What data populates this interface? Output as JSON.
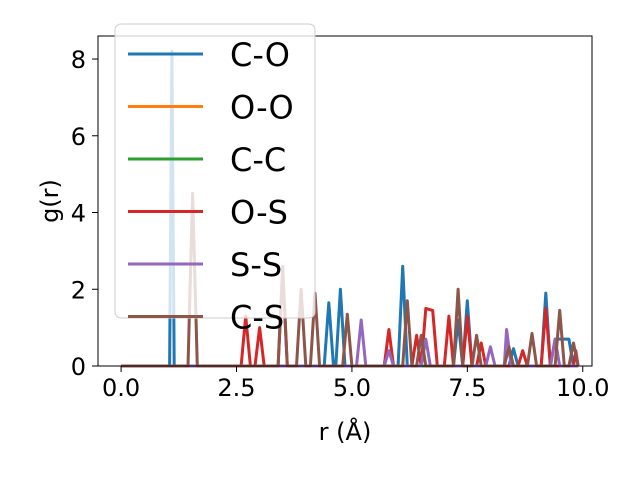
{
  "chart_data": {
    "type": "line",
    "xlabel": "r (Å)",
    "ylabel": "g(r)",
    "xlim": [
      -0.5,
      10.2
    ],
    "ylim": [
      0,
      8.6
    ],
    "xticks": [
      "0.0",
      "2.5",
      "5.0",
      "7.5",
      "10.0"
    ],
    "xtick_values": [
      0,
      2.5,
      5,
      7.5,
      10
    ],
    "yticks": [
      "0",
      "2",
      "4",
      "6",
      "8"
    ],
    "ytick_values": [
      0,
      2,
      4,
      6,
      8
    ],
    "grid": false,
    "legend_position": "upper-left",
    "series": [
      {
        "name": "C-O",
        "color": "#1f77b4",
        "points": [
          [
            0,
            0
          ],
          [
            1.05,
            0
          ],
          [
            1.1,
            8.2
          ],
          [
            1.15,
            0
          ],
          [
            4.4,
            0
          ],
          [
            4.5,
            1.65
          ],
          [
            4.6,
            0
          ],
          [
            4.65,
            0
          ],
          [
            4.75,
            2.0
          ],
          [
            4.85,
            0
          ],
          [
            6.0,
            0
          ],
          [
            6.1,
            2.6
          ],
          [
            6.2,
            0
          ],
          [
            7.2,
            0
          ],
          [
            7.3,
            1.2
          ],
          [
            7.4,
            0
          ],
          [
            7.5,
            1.7
          ],
          [
            7.6,
            0
          ],
          [
            8.4,
            0
          ],
          [
            8.5,
            0.45
          ],
          [
            8.6,
            0
          ],
          [
            9.1,
            0
          ],
          [
            9.2,
            1.9
          ],
          [
            9.3,
            0
          ],
          [
            9.4,
            0.7
          ],
          [
            9.7,
            0.7
          ],
          [
            9.8,
            0
          ],
          [
            9.9,
            0
          ]
        ]
      },
      {
        "name": "O-O",
        "color": "#ff7f0e",
        "points": [
          [
            0,
            0
          ],
          [
            9.9,
            0
          ]
        ]
      },
      {
        "name": "C-C",
        "color": "#2ca02c",
        "points": [
          [
            0,
            0
          ],
          [
            9.9,
            0
          ]
        ]
      },
      {
        "name": "O-S",
        "color": "#d62728",
        "points": [
          [
            0,
            0
          ],
          [
            2.6,
            0
          ],
          [
            2.7,
            1.3
          ],
          [
            2.8,
            0
          ],
          [
            2.9,
            0
          ],
          [
            3.0,
            1.0
          ],
          [
            3.1,
            0
          ],
          [
            3.4,
            0
          ],
          [
            3.5,
            2.5
          ],
          [
            3.6,
            0
          ],
          [
            5.7,
            0
          ],
          [
            5.8,
            0.95
          ],
          [
            5.9,
            0
          ],
          [
            6.3,
            0
          ],
          [
            6.4,
            0.8
          ],
          [
            6.5,
            0
          ],
          [
            6.6,
            1.5
          ],
          [
            6.75,
            1.45
          ],
          [
            6.85,
            0
          ],
          [
            7.0,
            0
          ],
          [
            7.1,
            1.3
          ],
          [
            7.2,
            0
          ],
          [
            7.4,
            0
          ],
          [
            7.5,
            1.3
          ],
          [
            7.6,
            0
          ],
          [
            7.7,
            0
          ],
          [
            7.8,
            0.6
          ],
          [
            7.9,
            0
          ],
          [
            8.6,
            0
          ],
          [
            8.7,
            0.4
          ],
          [
            8.8,
            0
          ],
          [
            9.1,
            0
          ],
          [
            9.2,
            1.5
          ],
          [
            9.3,
            0
          ],
          [
            9.8,
            0
          ],
          [
            9.85,
            0.4
          ],
          [
            9.9,
            0
          ]
        ]
      },
      {
        "name": "S-S",
        "color": "#9467bd",
        "points": [
          [
            0,
            0
          ],
          [
            5.1,
            0
          ],
          [
            5.2,
            1.2
          ],
          [
            5.3,
            0
          ],
          [
            5.7,
            0
          ],
          [
            5.8,
            0.4
          ],
          [
            5.9,
            0
          ],
          [
            6.5,
            0
          ],
          [
            6.6,
            0.7
          ],
          [
            6.7,
            0
          ],
          [
            7.9,
            0
          ],
          [
            8.0,
            0.5
          ],
          [
            8.1,
            0
          ],
          [
            8.3,
            0
          ],
          [
            8.35,
            0.95
          ],
          [
            8.45,
            0
          ],
          [
            9.3,
            0
          ],
          [
            9.4,
            0.7
          ],
          [
            9.5,
            0
          ],
          [
            9.9,
            0
          ]
        ]
      },
      {
        "name": "C-S",
        "color": "#8c564b",
        "points": [
          [
            0,
            0
          ],
          [
            1.45,
            0
          ],
          [
            1.55,
            4.5
          ],
          [
            1.65,
            0
          ],
          [
            3.4,
            0
          ],
          [
            3.5,
            2.6
          ],
          [
            3.6,
            0
          ],
          [
            3.8,
            0
          ],
          [
            3.9,
            2.0
          ],
          [
            4.0,
            0
          ],
          [
            4.1,
            0
          ],
          [
            4.2,
            1.9
          ],
          [
            4.3,
            0
          ],
          [
            4.8,
            0
          ],
          [
            4.9,
            1.35
          ],
          [
            5.0,
            0
          ],
          [
            6.1,
            0
          ],
          [
            6.2,
            1.7
          ],
          [
            6.3,
            0
          ],
          [
            6.4,
            0
          ],
          [
            6.5,
            0.8
          ],
          [
            6.6,
            0
          ],
          [
            7.2,
            0
          ],
          [
            7.3,
            2.0
          ],
          [
            7.4,
            0
          ],
          [
            7.6,
            0
          ],
          [
            7.7,
            0.8
          ],
          [
            7.8,
            0
          ],
          [
            8.3,
            0
          ],
          [
            8.4,
            0.5
          ],
          [
            8.5,
            0
          ],
          [
            8.8,
            0
          ],
          [
            8.9,
            0.85
          ],
          [
            9.0,
            0
          ],
          [
            9.4,
            0
          ],
          [
            9.5,
            1.45
          ],
          [
            9.6,
            0
          ],
          [
            9.7,
            0
          ],
          [
            9.8,
            0.6
          ],
          [
            9.9,
            0
          ]
        ]
      }
    ]
  }
}
